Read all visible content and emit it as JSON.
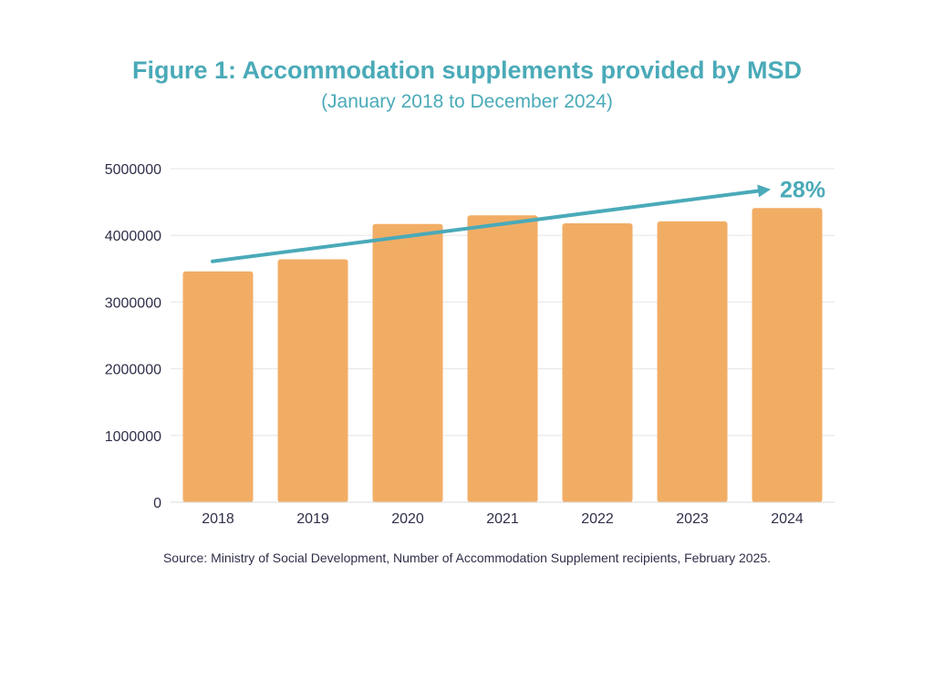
{
  "figure": {
    "title": "Figure 1: Accommodation supplements provided by MSD",
    "subtitle": "(January 2018 to December 2024)",
    "source": "Source: Ministry of Social Development, Number of Accommodation Supplement recipients, February 2025."
  },
  "chart_data": {
    "type": "bar",
    "title": "Figure 1: Accommodation supplements provided by MSD",
    "subtitle": "(January 2018 to December 2024)",
    "categories": [
      "2018",
      "2019",
      "2020",
      "2021",
      "2022",
      "2023",
      "2024"
    ],
    "values": [
      3460000,
      3640000,
      4170000,
      4300000,
      4180000,
      4210000,
      4410000
    ],
    "ylim": [
      0,
      5000000
    ],
    "yticks": [
      "0",
      "1000000",
      "2000000",
      "3000000",
      "4000000",
      "5000000"
    ],
    "grid": true,
    "trend": {
      "from": {
        "x": "2018",
        "y": 3610000
      },
      "to": {
        "x": "2024",
        "y": 4690000
      },
      "label": "28%"
    },
    "colors": {
      "bar": "#f2ad65",
      "trend": "#4aaab8",
      "grid": "#e6e6e6",
      "text": "#2f2f4a"
    }
  }
}
